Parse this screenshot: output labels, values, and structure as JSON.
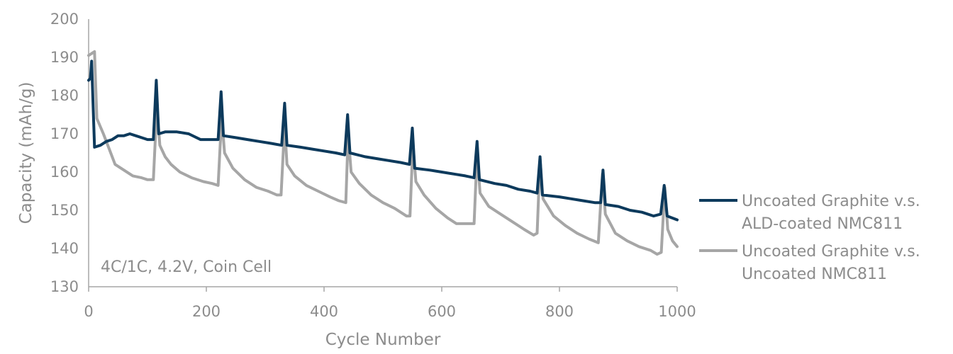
{
  "chart_data": {
    "type": "line",
    "title": "",
    "xlabel": "Cycle Number",
    "ylabel": "Capacity (mAh/g)",
    "xlim": [
      0,
      1000
    ],
    "ylim": [
      130,
      200
    ],
    "xticks": [
      "0",
      "200",
      "400",
      "600",
      "800",
      "1000"
    ],
    "yticks": [
      "130",
      "140",
      "150",
      "160",
      "170",
      "180",
      "190",
      "200"
    ],
    "grid": false,
    "legend_position": "right",
    "annotation": "4C/1C, 4.2V, Coin Cell",
    "series": [
      {
        "name_lines": [
          "Uncoated Graphite v.s.",
          "ALD-coated NMC811"
        ],
        "color": "#0d3a5c",
        "points": [
          [
            0,
            184
          ],
          [
            3,
            184.5
          ],
          [
            5,
            189
          ],
          [
            10,
            166.5
          ],
          [
            20,
            167
          ],
          [
            30,
            168
          ],
          [
            40,
            168.5
          ],
          [
            50,
            169.5
          ],
          [
            60,
            169.5
          ],
          [
            70,
            170
          ],
          [
            80,
            169.5
          ],
          [
            90,
            169
          ],
          [
            100,
            168.5
          ],
          [
            110,
            168.5
          ],
          [
            115,
            184
          ],
          [
            119,
            170
          ],
          [
            130,
            170.5
          ],
          [
            150,
            170.5
          ],
          [
            170,
            170
          ],
          [
            190,
            168.5
          ],
          [
            210,
            168.5
          ],
          [
            220,
            168.5
          ],
          [
            225,
            181
          ],
          [
            229,
            169.5
          ],
          [
            250,
            169
          ],
          [
            270,
            168.5
          ],
          [
            290,
            168
          ],
          [
            310,
            167.5
          ],
          [
            328,
            167
          ],
          [
            333,
            178
          ],
          [
            337,
            167
          ],
          [
            360,
            166.5
          ],
          [
            380,
            166
          ],
          [
            400,
            165.5
          ],
          [
            420,
            165
          ],
          [
            435,
            164.5
          ],
          [
            440,
            175
          ],
          [
            444,
            165
          ],
          [
            470,
            164
          ],
          [
            490,
            163.5
          ],
          [
            510,
            163
          ],
          [
            530,
            162.5
          ],
          [
            545,
            162
          ],
          [
            550,
            171.5
          ],
          [
            554,
            161
          ],
          [
            580,
            160.5
          ],
          [
            600,
            160
          ],
          [
            620,
            159.5
          ],
          [
            640,
            159
          ],
          [
            655,
            158.5
          ],
          [
            660,
            168
          ],
          [
            664,
            158
          ],
          [
            690,
            157
          ],
          [
            710,
            156.5
          ],
          [
            730,
            155.5
          ],
          [
            750,
            155
          ],
          [
            762,
            154.5
          ],
          [
            767,
            164
          ],
          [
            771,
            154
          ],
          [
            800,
            153.5
          ],
          [
            820,
            153
          ],
          [
            840,
            152.5
          ],
          [
            860,
            152
          ],
          [
            870,
            152
          ],
          [
            874,
            160.5
          ],
          [
            878,
            151.5
          ],
          [
            900,
            151
          ],
          [
            920,
            150
          ],
          [
            940,
            149.5
          ],
          [
            960,
            148.5
          ],
          [
            972,
            149
          ],
          [
            978,
            156.5
          ],
          [
            983,
            148.5
          ],
          [
            1000,
            147.5
          ]
        ]
      },
      {
        "name_lines": [
          "Uncoated Graphite v.s.",
          "Uncoated NMC811"
        ],
        "color": "#a6a6a6",
        "points": [
          [
            0,
            190.5
          ],
          [
            5,
            191
          ],
          [
            10,
            191.5
          ],
          [
            14,
            174
          ],
          [
            25,
            170
          ],
          [
            35,
            166
          ],
          [
            45,
            162
          ],
          [
            60,
            160.5
          ],
          [
            75,
            159
          ],
          [
            90,
            158.5
          ],
          [
            100,
            158
          ],
          [
            110,
            158
          ],
          [
            116,
            177.5
          ],
          [
            121,
            167
          ],
          [
            130,
            164
          ],
          [
            140,
            162
          ],
          [
            155,
            160
          ],
          [
            175,
            158.5
          ],
          [
            195,
            157.5
          ],
          [
            210,
            157
          ],
          [
            220,
            156.5
          ],
          [
            226,
            174.5
          ],
          [
            231,
            165
          ],
          [
            245,
            161
          ],
          [
            265,
            158
          ],
          [
            285,
            156
          ],
          [
            305,
            155
          ],
          [
            320,
            154
          ],
          [
            327,
            154
          ],
          [
            333,
            172.5
          ],
          [
            337,
            162
          ],
          [
            350,
            159
          ],
          [
            370,
            156.5
          ],
          [
            390,
            155
          ],
          [
            410,
            153.5
          ],
          [
            425,
            152.5
          ],
          [
            437,
            152
          ],
          [
            441,
            170
          ],
          [
            446,
            160
          ],
          [
            460,
            157
          ],
          [
            480,
            154
          ],
          [
            500,
            152
          ],
          [
            520,
            150.5
          ],
          [
            540,
            148.5
          ],
          [
            546,
            148.5
          ],
          [
            551,
            167.5
          ],
          [
            556,
            157.5
          ],
          [
            570,
            154
          ],
          [
            590,
            150.5
          ],
          [
            610,
            148
          ],
          [
            625,
            146.5
          ],
          [
            640,
            146.5
          ],
          [
            655,
            146.5
          ],
          [
            660,
            165
          ],
          [
            665,
            154.5
          ],
          [
            680,
            151
          ],
          [
            700,
            149
          ],
          [
            720,
            147
          ],
          [
            740,
            145
          ],
          [
            756,
            143.5
          ],
          [
            762,
            144
          ],
          [
            767,
            163.5
          ],
          [
            772,
            153
          ],
          [
            790,
            148.5
          ],
          [
            810,
            146
          ],
          [
            830,
            144
          ],
          [
            850,
            142.5
          ],
          [
            866,
            141.5
          ],
          [
            873,
            159.5
          ],
          [
            878,
            149
          ],
          [
            895,
            144
          ],
          [
            915,
            142
          ],
          [
            935,
            140.5
          ],
          [
            955,
            139.5
          ],
          [
            966,
            138.5
          ],
          [
            973,
            139
          ],
          [
            979,
            156
          ],
          [
            984,
            145
          ],
          [
            992,
            142
          ],
          [
            1000,
            140.5
          ]
        ]
      }
    ]
  }
}
